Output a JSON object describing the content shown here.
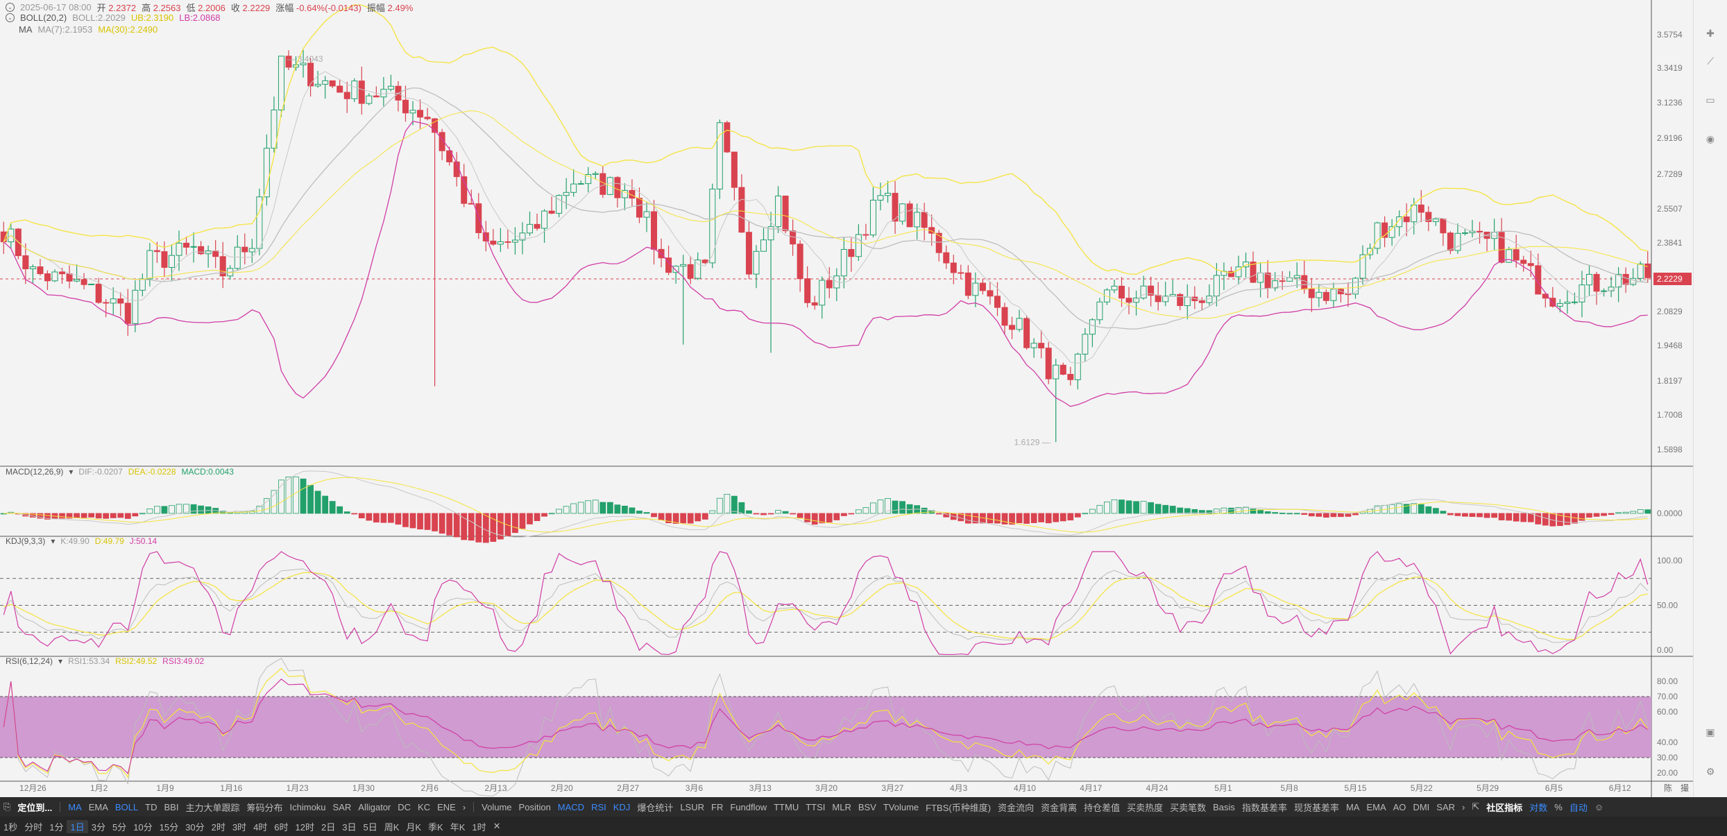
{
  "header": {
    "datetime": "2025-06-17 08:00",
    "open_label": "开",
    "open": "2.2372",
    "high_label": "高",
    "high": "2.2563",
    "low_label": "低",
    "low": "2.2006",
    "close_label": "收",
    "close": "2.2229",
    "change_label": "涨幅",
    "change": "-0.64%(-0.0143)",
    "amp_label": "振幅",
    "amp": "2.49%"
  },
  "boll": {
    "label": "BOLL(20,2)",
    "boll": "BOLL:2.2029",
    "ub": "UB:2.3190",
    "lb": "LB:2.0868"
  },
  "ma": {
    "label": "MA",
    "ma7": "MA(7):2.1953",
    "ma30": "MA(30):2.2490"
  },
  "macd_legend": {
    "label": "MACD(12,26,9)",
    "dif": "DIF:-0.0207",
    "dea": "DEA:-0.0228",
    "macd": "MACD:0.0043"
  },
  "kdj_legend": {
    "label": "KDJ(9,3,3)",
    "k": "K:49.90",
    "d": "D:49.79",
    "j": "J:50.14"
  },
  "rsi_legend": {
    "label": "RSI(6,12,24)",
    "rsi1": "RSI1:53.34",
    "rsi2": "RSI2:49.52",
    "rsi3": "RSI3:49.02"
  },
  "colors": {
    "up": "#22a06b",
    "down": "#d9434f",
    "boll_mid": "#bdbdbd",
    "boll_ub": "#f5e33b",
    "boll_lb": "#d13ca6",
    "ma7": "#c8c8c8",
    "ma30": "#f5e33b",
    "rsi_band": "#cf9bd0"
  },
  "chart_data": {
    "type": "candlestick",
    "price_ticks": [
      "3.5754",
      "3.3419",
      "3.1236",
      "2.9196",
      "2.7289",
      "2.5507",
      "2.3841",
      "2.2229",
      "2.0829",
      "1.9468",
      "1.8197",
      "1.7008",
      "1.5898"
    ],
    "current_price": "2.2229",
    "max_annotation": "3.4043",
    "min_annotation": "1.6129",
    "x_labels": [
      "12月26",
      "1月2",
      "1月9",
      "1月16",
      "1月23",
      "1月30",
      "2月6",
      "2月13",
      "2月20",
      "2月27",
      "3月6",
      "3月13",
      "3月20",
      "3月27",
      "4月3",
      "4月10",
      "4月17",
      "4月24",
      "5月1",
      "5月8",
      "5月15",
      "5月22",
      "5月29",
      "6月5",
      "6月12"
    ],
    "macd_ticks": [
      "0.0000"
    ],
    "kdj_ticks": [
      "100.00",
      "50.00",
      "0.00"
    ],
    "rsi_ticks": [
      "80.00",
      "70.00",
      "60.00",
      "40.00",
      "30.00",
      "20.00"
    ],
    "rsi_band": [
      30,
      70
    ]
  },
  "indicators_bar": {
    "locate": "定位到...",
    "main": [
      "MA",
      "EMA",
      "BOLL",
      "TD",
      "BBI",
      "主力大单跟踪",
      "筹码分布",
      "Ichimoku",
      "SAR",
      "Alligator",
      "DC",
      "KC",
      "ENE"
    ],
    "sub": [
      "Volume",
      "Position",
      "MACD",
      "RSI",
      "KDJ",
      "爆仓统计",
      "LSUR",
      "FR",
      "Fundflow",
      "TTMU",
      "TTSI",
      "MLR",
      "BSV",
      "TVolume",
      "FTBS(币种维度)",
      "资金流向",
      "资金背离",
      "持仓差值",
      "买卖热度",
      "买卖笔数",
      "Basis",
      "指数基差率",
      "现货基差率",
      "MA",
      "EMA",
      "AO",
      "DMI",
      "SAR"
    ],
    "community": "社区指标",
    "log": "对数",
    "percent": "%",
    "auto": "自动"
  },
  "timeframes": [
    "1秒",
    "分时",
    "1分",
    "1日",
    "3分",
    "5分",
    "10分",
    "15分",
    "30分",
    "2时",
    "3时",
    "4时",
    "6时",
    "12时",
    "2日",
    "3日",
    "5日",
    "周K",
    "月K",
    "季K",
    "年K",
    "1时"
  ],
  "corner": {
    "a": "陈",
    "b": "撮"
  }
}
